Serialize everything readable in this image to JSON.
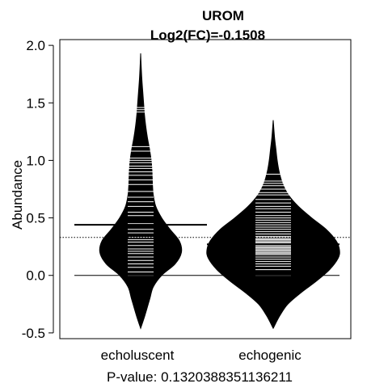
{
  "chart_data": {
    "type": "beanplot",
    "title": "UROM",
    "subtitle": "Log2(FC)=-0.1508",
    "ylabel": "Abundance",
    "xlabel": "P-value: 0.1320388351136211",
    "ylim": [
      -0.55,
      2.05
    ],
    "yticks": [
      -0.5,
      0.0,
      0.5,
      1.0,
      1.5,
      2.0
    ],
    "ytick_labels": [
      "-0.5",
      "0.0",
      "0.5",
      "1.0",
      "1.5",
      "2.0"
    ],
    "categories": [
      "echoluscent",
      "echogenic"
    ],
    "overall_mean": 0.33,
    "colors": {
      "bean": "#000000",
      "strip": "#ffffff",
      "line": "#000000"
    },
    "series": [
      {
        "mean": 0.44,
        "density": [
          [
            -0.46,
            0.0
          ],
          [
            -0.35,
            0.1
          ],
          [
            -0.2,
            0.22
          ],
          [
            -0.1,
            0.3
          ],
          [
            0.0,
            0.5
          ],
          [
            0.1,
            0.82
          ],
          [
            0.2,
            0.97
          ],
          [
            0.3,
            0.92
          ],
          [
            0.4,
            0.7
          ],
          [
            0.5,
            0.5
          ],
          [
            0.6,
            0.36
          ],
          [
            0.7,
            0.3
          ],
          [
            0.8,
            0.28
          ],
          [
            0.9,
            0.27
          ],
          [
            1.0,
            0.25
          ],
          [
            1.1,
            0.21
          ],
          [
            1.2,
            0.16
          ],
          [
            1.3,
            0.12
          ],
          [
            1.4,
            0.09
          ],
          [
            1.5,
            0.07
          ],
          [
            1.6,
            0.05
          ],
          [
            1.7,
            0.03
          ],
          [
            1.8,
            0.015
          ],
          [
            1.93,
            0.0
          ]
        ],
        "points": [
          0.0,
          0.03,
          0.07,
          0.1,
          0.13,
          0.16,
          0.19,
          0.21,
          0.23,
          0.26,
          0.29,
          0.31,
          0.33,
          0.37,
          0.4,
          0.45,
          0.52,
          0.55,
          0.6,
          0.64,
          0.68,
          0.73,
          0.79,
          0.83,
          0.87,
          0.9,
          0.93,
          0.95,
          0.98,
          1.0,
          1.02,
          1.08,
          1.12,
          1.42,
          1.44,
          1.46
        ]
      },
      {
        "mean": 0.27,
        "density": [
          [
            -0.46,
            0.0
          ],
          [
            -0.35,
            0.1
          ],
          [
            -0.25,
            0.22
          ],
          [
            -0.15,
            0.42
          ],
          [
            -0.05,
            0.65
          ],
          [
            0.05,
            0.85
          ],
          [
            0.15,
            0.98
          ],
          [
            0.22,
            1.0
          ],
          [
            0.3,
            0.95
          ],
          [
            0.4,
            0.8
          ],
          [
            0.5,
            0.58
          ],
          [
            0.6,
            0.38
          ],
          [
            0.7,
            0.23
          ],
          [
            0.8,
            0.14
          ],
          [
            0.9,
            0.09
          ],
          [
            1.0,
            0.06
          ],
          [
            1.1,
            0.04
          ],
          [
            1.2,
            0.02
          ],
          [
            1.35,
            0.0
          ]
        ],
        "points": [
          0.0,
          0.05,
          0.08,
          0.1,
          0.12,
          0.14,
          0.16,
          0.18,
          0.19,
          0.2,
          0.21,
          0.22,
          0.23,
          0.24,
          0.25,
          0.26,
          0.27,
          0.28,
          0.29,
          0.3,
          0.31,
          0.32,
          0.33,
          0.34,
          0.36,
          0.38,
          0.4,
          0.42,
          0.44,
          0.46,
          0.48,
          0.5,
          0.52,
          0.55,
          0.58,
          0.6,
          0.63,
          0.66,
          0.7,
          0.72,
          0.75,
          0.78,
          0.8,
          0.82,
          0.88
        ]
      }
    ]
  }
}
